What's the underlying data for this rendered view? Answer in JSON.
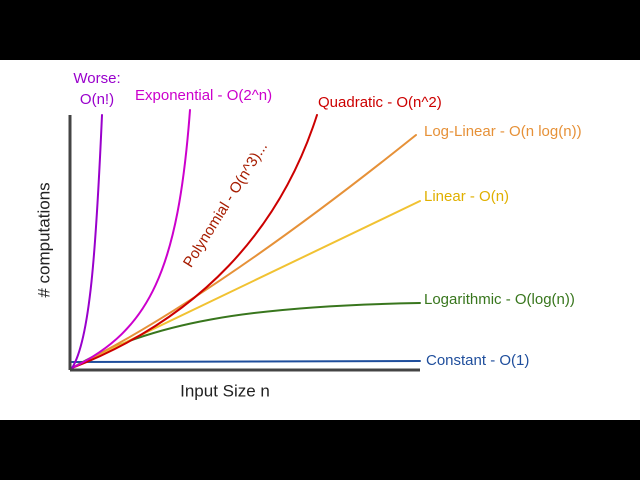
{
  "axes": {
    "x_label": "Input Size n",
    "y_label": "# computations"
  },
  "curves": [
    {
      "name": "Worse:",
      "sub": "O(n!)"
    },
    {
      "name": "Exponential - O(2^n)"
    },
    {
      "name": "Polynomial - O(n^3)..."
    },
    {
      "name": "Quadratic - O(n^2)"
    },
    {
      "name": "Log-Linear - O(n log(n))"
    },
    {
      "name": "Linear - O(n)"
    },
    {
      "name": "Logarithmic - O(log(n))"
    },
    {
      "name": "Constant - O(1)"
    }
  ]
}
